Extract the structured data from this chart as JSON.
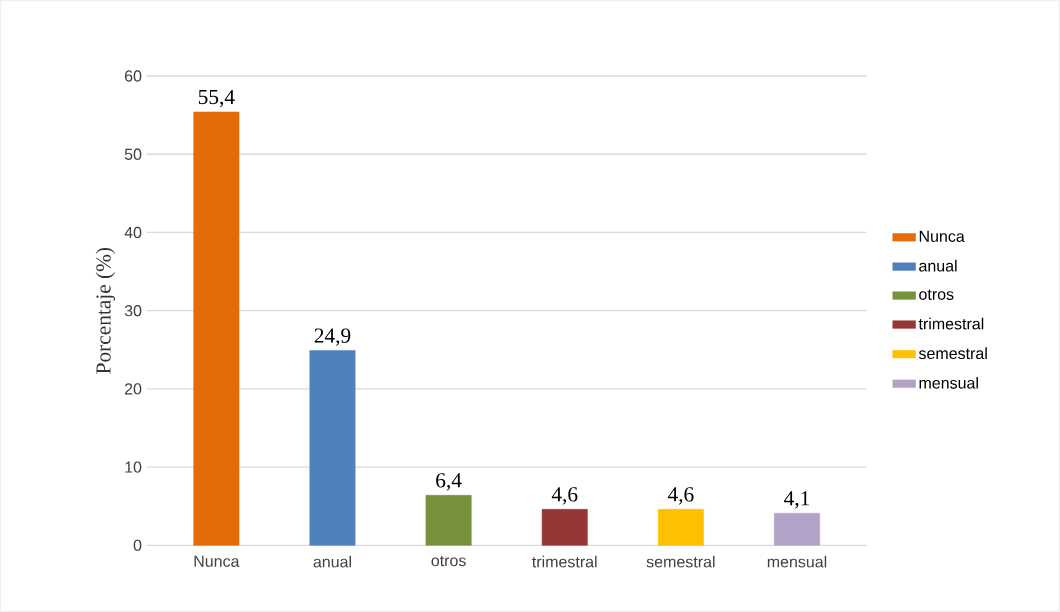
{
  "chart_data": {
    "type": "bar",
    "ylabel": "Porcentaje (%)",
    "categories": [
      "Nunca",
      "anual",
      "otros",
      "trimestral",
      "semestral",
      "mensual"
    ],
    "series": [
      {
        "name": "Nunca",
        "color": "#e36c09",
        "values": [
          55.4,
          null,
          null,
          null,
          null,
          null
        ],
        "value_labels": [
          "55,4",
          null,
          null,
          null,
          null,
          null
        ]
      },
      {
        "name": "anual",
        "color": "#4f81bd",
        "values": [
          null,
          24.9,
          null,
          null,
          null,
          null
        ],
        "value_labels": [
          null,
          "24,9",
          null,
          null,
          null,
          null
        ]
      },
      {
        "name": "otros",
        "color": "#76923c",
        "values": [
          null,
          null,
          6.4,
          null,
          null,
          null
        ],
        "value_labels": [
          null,
          null,
          "6,4",
          null,
          null,
          null
        ]
      },
      {
        "name": "trimestral",
        "color": "#953735",
        "values": [
          null,
          null,
          null,
          4.6,
          null,
          null
        ],
        "value_labels": [
          null,
          null,
          null,
          "4,6",
          null,
          null
        ]
      },
      {
        "name": "semestral",
        "color": "#ffc000",
        "values": [
          null,
          null,
          null,
          null,
          4.6,
          null
        ],
        "value_labels": [
          null,
          null,
          null,
          null,
          "4,6",
          null
        ]
      },
      {
        "name": "mensual",
        "color": "#b3a2c7",
        "values": [
          null,
          null,
          null,
          null,
          null,
          4.1
        ],
        "value_labels": [
          null,
          null,
          null,
          null,
          null,
          "4,1"
        ]
      }
    ],
    "ylim": [
      0,
      60
    ],
    "yticks": [
      0,
      10,
      20,
      30,
      40,
      50,
      60
    ],
    "grid": "y",
    "legend": "right"
  }
}
